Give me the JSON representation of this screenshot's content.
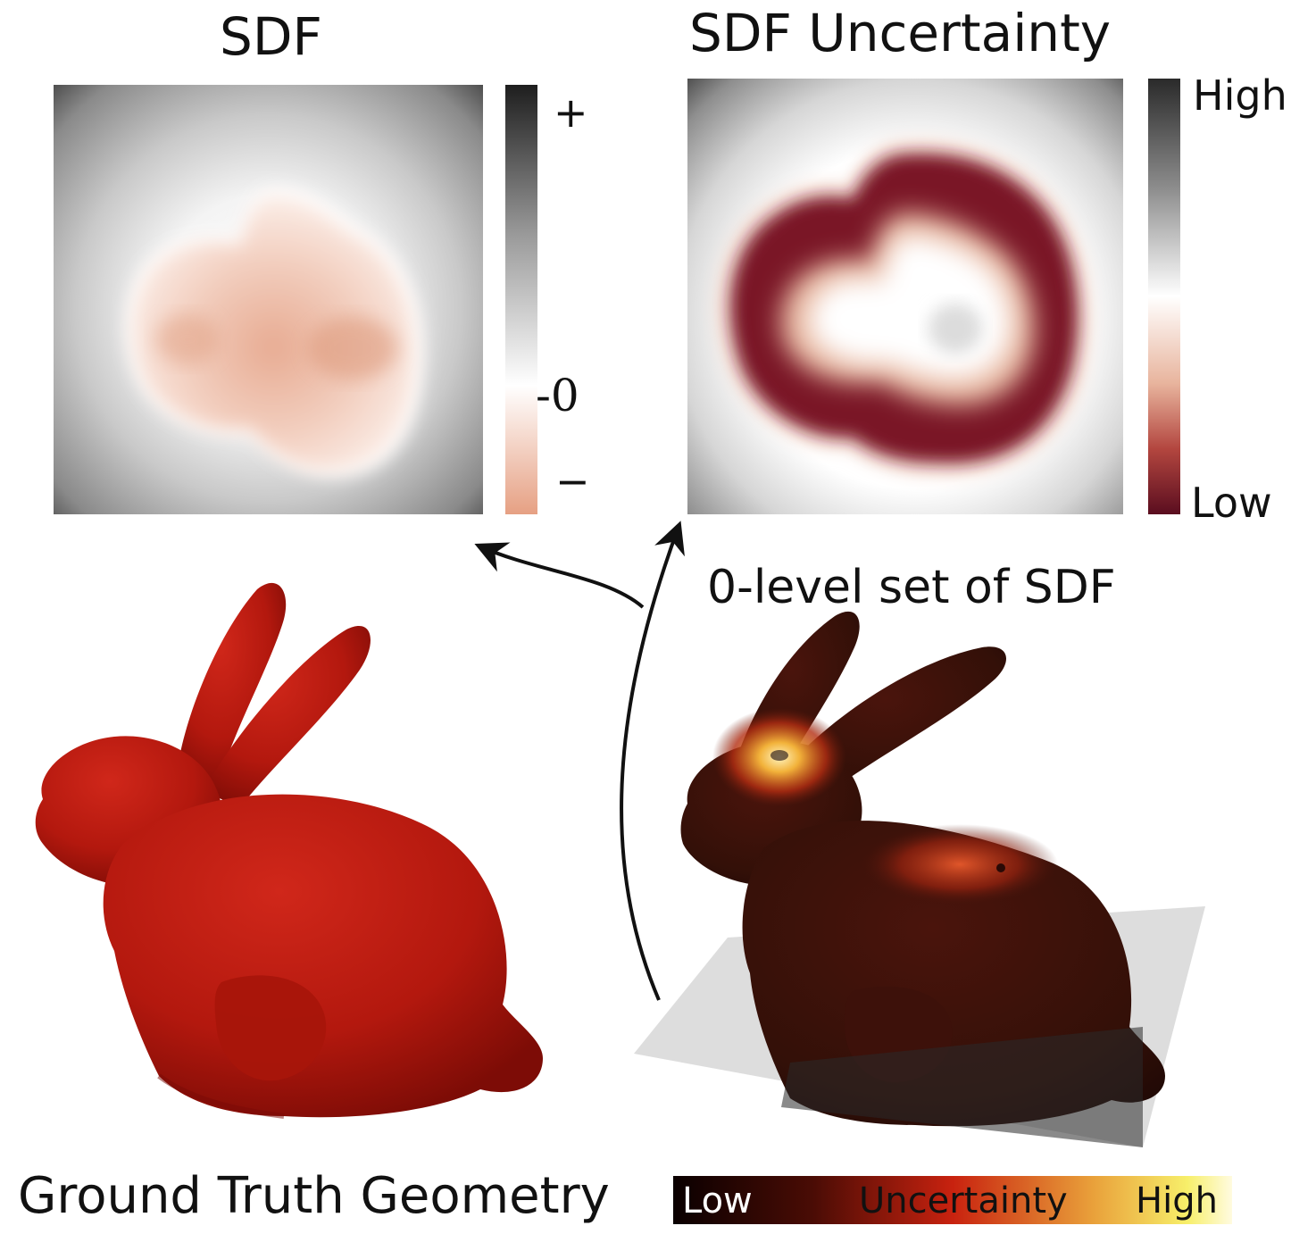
{
  "panels": {
    "sdf": {
      "title": "SDF",
      "colorbar": {
        "top_label": "+",
        "mid_label": "-0",
        "bottom_label": "−"
      }
    },
    "uncertainty": {
      "title": "SDF Uncertainty",
      "colorbar": {
        "top_label": "High",
        "bottom_label": "Low"
      }
    },
    "level_set": {
      "title": "0-level set of SDF"
    },
    "ground_truth": {
      "caption": "Ground Truth Geometry"
    }
  },
  "bottom_colorbar": {
    "left_label": "Low",
    "middle_label": "Uncertainty",
    "right_label": "High"
  },
  "colors": {
    "bunny_red": "#b3180e",
    "bunny_dark": "#3a0e0a",
    "sdf_outside": "#2a2a2a",
    "sdf_inside": "#e6a88c",
    "uncert_low": "#5b0e1b",
    "uncert_high": "#2b2b2b"
  }
}
